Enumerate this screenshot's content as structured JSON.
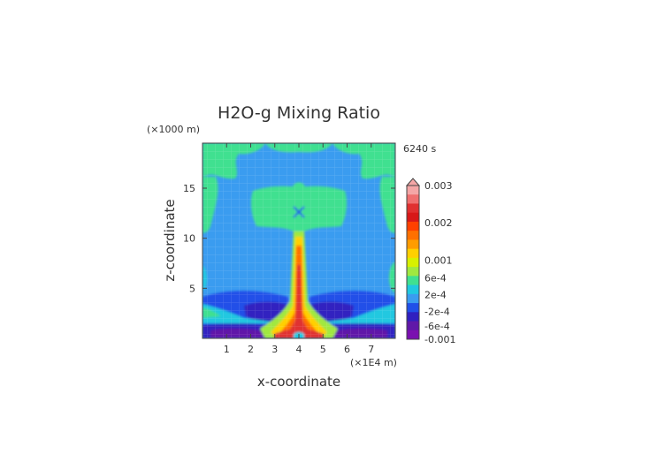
{
  "chart_data": {
    "type": "heatmap",
    "title": "H2O-g Mixing Ratio",
    "time_label": "6240 s",
    "xlabel": "x-coordinate",
    "ylabel": "z-coordinate",
    "x_unit": "(×1E4 m)",
    "y_unit": "(×1000 m)",
    "xlim": [
      0,
      8
    ],
    "ylim": [
      0,
      19.5
    ],
    "x_ticks": [
      "1",
      "2",
      "3",
      "4",
      "5",
      "6",
      "7"
    ],
    "y_ticks": [
      "5",
      "10",
      "15"
    ],
    "colorbar": {
      "labels": [
        "0.003",
        "0.002",
        "0.001",
        "6e-4",
        "2e-4",
        "-2e-4",
        "-6e-4",
        "-0.001"
      ],
      "colors": [
        "#f4a6a6",
        "#ef6f6f",
        "#e03030",
        "#d81818",
        "#ff4000",
        "#ff7000",
        "#ff9c00",
        "#ffd000",
        "#d8f000",
        "#a0e840",
        "#40e090",
        "#20c8e0",
        "#3a9cf0",
        "#2050e8",
        "#3020c0",
        "#6018a8",
        "#7a10b0"
      ]
    },
    "fields": {
      "background": "#3a9cf0",
      "light_cyan": "#40e090",
      "cyan": "#20c8e0",
      "blue": "#2050e8",
      "navy": "#3020c0",
      "core_red": "#e03030",
      "core_orange": "#ff7000",
      "core_yellow": "#ffd000",
      "core_green": "#a0e840"
    }
  }
}
